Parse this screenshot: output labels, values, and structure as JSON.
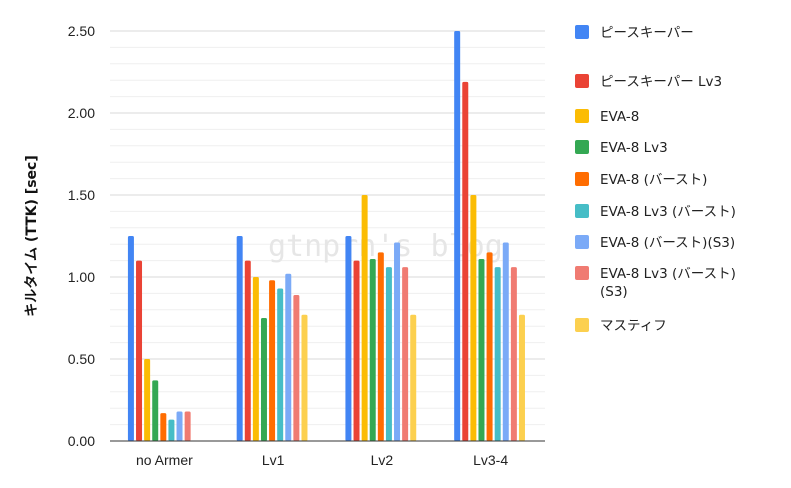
{
  "chart_data": {
    "type": "bar",
    "title": "",
    "xlabel": "",
    "ylabel": "キルタイム (TTK) [sec]",
    "ylim": [
      0,
      2.5
    ],
    "yticks": [
      "0.00",
      "0.50",
      "1.00",
      "1.50",
      "2.00",
      "2.50"
    ],
    "grid": true,
    "legend_position": "right",
    "watermark": "gtnprn's blog",
    "categories": [
      "no Armer",
      "Lv1",
      "Lv2",
      "Lv3-4"
    ],
    "series": [
      {
        "name": "ピースキーパー",
        "color": "#4285f4",
        "values": [
          1.25,
          1.25,
          1.25,
          2.5
        ]
      },
      {
        "name": "ピースキーパー Lv3",
        "color": "#ea4335",
        "values": [
          1.1,
          1.1,
          1.1,
          2.19
        ]
      },
      {
        "name": "EVA-8",
        "color": "#fbbc04",
        "values": [
          0.5,
          1.0,
          1.5,
          1.5
        ]
      },
      {
        "name": "EVA-8 Lv3",
        "color": "#34a853",
        "values": [
          0.37,
          0.75,
          1.11,
          1.11
        ]
      },
      {
        "name": "EVA-8 (バースト)",
        "color": "#ff6d01",
        "values": [
          0.17,
          0.98,
          1.15,
          1.15
        ]
      },
      {
        "name": "EVA-8 Lv3 (バースト)",
        "color": "#46bdc6",
        "values": [
          0.13,
          0.93,
          1.06,
          1.06
        ]
      },
      {
        "name": "EVA-8 (バースト)(S3)",
        "color": "#7baaf7",
        "values": [
          0.18,
          1.02,
          1.21,
          1.21
        ]
      },
      {
        "name": "EVA-8 Lv3 (バースト)(S3)",
        "color": "#f07b72",
        "values": [
          0.18,
          0.89,
          1.06,
          1.06
        ]
      },
      {
        "name": "マスティフ",
        "color": "#fcd04f",
        "values": [
          null,
          0.77,
          0.77,
          0.77
        ]
      }
    ]
  }
}
